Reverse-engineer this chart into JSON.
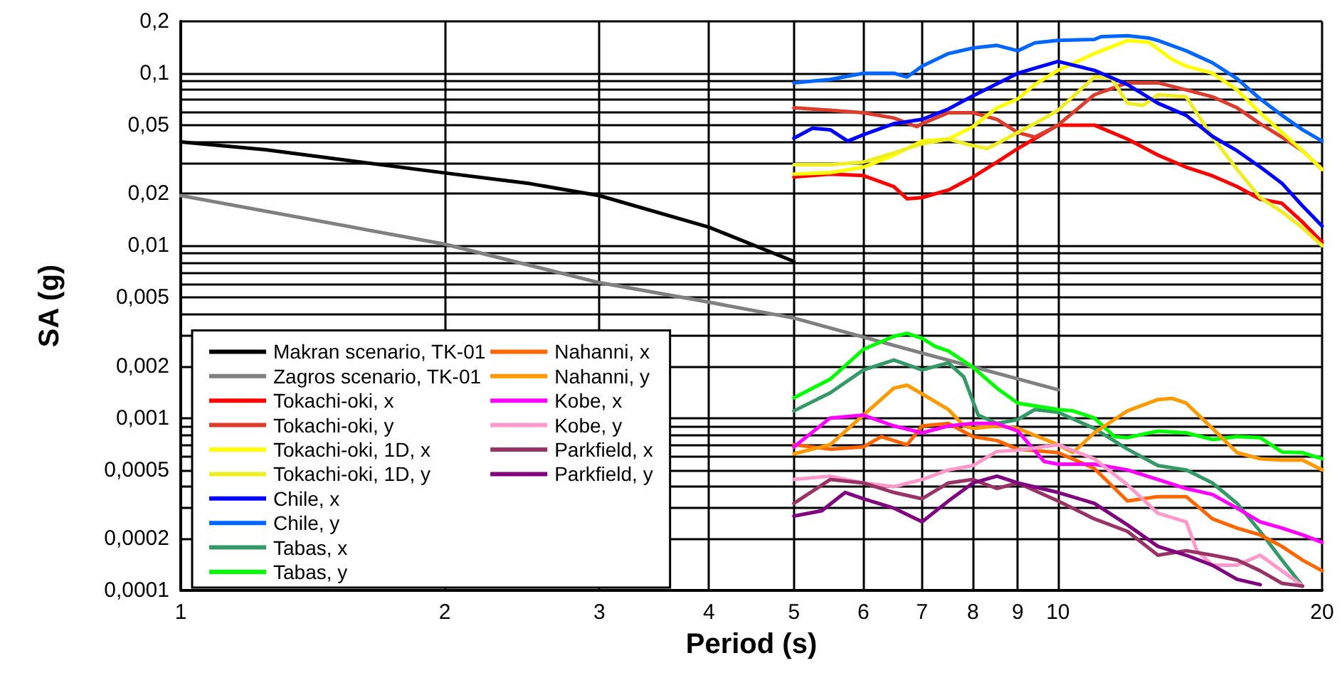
{
  "chart_data": {
    "type": "line",
    "xlabel": "Period (s)",
    "ylabel": "SA (g)",
    "log": "xy",
    "grid": true,
    "legend": "bottom left",
    "marker": "none",
    "line_style": "solid",
    "xlim": [
      1,
      20
    ],
    "xticks": [
      1,
      2,
      3,
      4,
      5,
      6,
      7,
      8,
      9,
      10,
      20
    ],
    "ylim": [
      0.0001,
      0.2
    ],
    "yticks": [
      {
        "value": 0.0001,
        "label": "0,0001"
      },
      {
        "value": 0.0002,
        "label": "0,0002"
      },
      {
        "value": 0.0003,
        "label": null
      },
      {
        "value": 0.0004,
        "label": null
      },
      {
        "value": 0.0005,
        "label": "0,0005"
      },
      {
        "value": 0.0006,
        "label": null
      },
      {
        "value": 0.0007,
        "label": null
      },
      {
        "value": 0.0008,
        "label": null
      },
      {
        "value": 0.0009,
        "label": null
      },
      {
        "value": 0.001,
        "label": "0,001"
      },
      {
        "value": 0.002,
        "label": "0,002"
      },
      {
        "value": 0.003,
        "label": null
      },
      {
        "value": 0.004,
        "label": null
      },
      {
        "value": 0.005,
        "label": "0,005"
      },
      {
        "value": 0.006,
        "label": null
      },
      {
        "value": 0.007,
        "label": null
      },
      {
        "value": 0.008,
        "label": null
      },
      {
        "value": 0.009,
        "label": null
      },
      {
        "value": 0.01,
        "label": "0,01"
      },
      {
        "value": 0.02,
        "label": "0,02"
      },
      {
        "value": 0.03,
        "label": null
      },
      {
        "value": 0.04,
        "label": null
      },
      {
        "value": 0.05,
        "label": "0,05"
      },
      {
        "value": 0.06,
        "label": null
      },
      {
        "value": 0.07,
        "label": null
      },
      {
        "value": 0.08,
        "label": null
      },
      {
        "value": 0.09,
        "label": null
      },
      {
        "value": 0.1,
        "label": "0,1"
      },
      {
        "value": 0.2,
        "label": "0,2"
      }
    ],
    "series": [
      {
        "name": "Makran scenario, TK-01",
        "color": "#000000",
        "x": [
          1,
          1.25,
          2,
          2.5,
          3,
          4,
          5
        ],
        "values": [
          0.04,
          0.036,
          0.0264,
          0.0229,
          0.0195,
          0.0128,
          0.0081
        ]
      },
      {
        "name": "Zagros scenario, TK-01",
        "color": "#808080",
        "x": [
          1,
          2,
          3,
          4,
          5,
          7,
          10
        ],
        "values": [
          0.0195,
          0.0102,
          0.0061,
          0.0047,
          0.0038,
          0.00238,
          0.00146
        ]
      },
      {
        "name": "Tokachi-oki, x",
        "color": "#ff0000",
        "x": [
          5,
          5.5,
          6,
          6.5,
          6.73,
          7,
          7.5,
          8,
          8.52,
          9,
          10,
          11,
          12,
          13,
          14,
          15,
          16,
          17,
          18,
          19,
          20
        ],
        "values": [
          0.025,
          0.026,
          0.0255,
          0.022,
          0.0187,
          0.019,
          0.021,
          0.025,
          0.0305,
          0.0366,
          0.05,
          0.05,
          0.0415,
          0.0335,
          0.0285,
          0.0254,
          0.022,
          0.0186,
          0.0176,
          0.0137,
          0.0105
        ]
      },
      {
        "name": "Tokachi-oki, y",
        "color": "#dd3c2c",
        "x": [
          5,
          5.5,
          6,
          6.5,
          6.9,
          7,
          7.5,
          8,
          8.52,
          9,
          9.41,
          10,
          11,
          12,
          13,
          14,
          15,
          16,
          17,
          18,
          19,
          20
        ],
        "values": [
          0.063,
          0.061,
          0.059,
          0.055,
          0.049,
          0.051,
          0.059,
          0.059,
          0.054,
          0.0453,
          0.0426,
          0.05,
          0.075,
          0.088,
          0.088,
          0.08,
          0.073,
          0.063,
          0.051,
          0.0426,
          0.0355,
          0.0277
        ]
      },
      {
        "name": "Tokachi-oki, 1D, x",
        "color": "#ffff00",
        "x": [
          5,
          5.5,
          6,
          6.5,
          7,
          7.5,
          8,
          8.52,
          9,
          9.41,
          10,
          11,
          12,
          12.7,
          13.5,
          14,
          15,
          16,
          17,
          18,
          19,
          20
        ],
        "values": [
          0.026,
          0.0265,
          0.0285,
          0.0335,
          0.0404,
          0.0415,
          0.049,
          0.063,
          0.071,
          0.086,
          0.104,
          0.13,
          0.155,
          0.151,
          0.12,
          0.11,
          0.1,
          0.08,
          0.059,
          0.0453,
          0.0355,
          0.0277
        ]
      },
      {
        "name": "Tokachi-oki, 1D, y",
        "color": "#eeee22",
        "x": [
          5,
          5.5,
          6,
          6.5,
          7,
          7.5,
          8,
          8.31,
          9,
          9.41,
          10,
          11,
          11.5,
          12,
          12.5,
          13,
          14,
          15,
          16,
          17,
          18,
          19,
          20
        ],
        "values": [
          0.0295,
          0.0295,
          0.0305,
          0.0345,
          0.039,
          0.0415,
          0.038,
          0.0366,
          0.0453,
          0.051,
          0.061,
          0.095,
          0.094,
          0.067,
          0.065,
          0.075,
          0.073,
          0.0426,
          0.0277,
          0.019,
          0.0157,
          0.0127,
          0.01
        ]
      },
      {
        "name": "Chile, x",
        "color": "#0000ff",
        "x": [
          5,
          5.25,
          5.5,
          5.76,
          6,
          6.5,
          7,
          7.5,
          8,
          9,
          10,
          11,
          12,
          13,
          14,
          15,
          16,
          17,
          18,
          19,
          20
        ],
        "values": [
          0.042,
          0.048,
          0.047,
          0.0404,
          0.044,
          0.051,
          0.054,
          0.062,
          0.074,
          0.1,
          0.117,
          0.104,
          0.086,
          0.067,
          0.057,
          0.043,
          0.0355,
          0.0286,
          0.023,
          0.017,
          0.013
        ]
      },
      {
        "name": "Chile, y",
        "color": "#0066ff",
        "x": [
          5,
          5.5,
          6,
          6.5,
          6.73,
          7,
          7.5,
          8,
          8.52,
          9,
          9.41,
          10,
          11,
          11.2,
          12,
          12.7,
          13,
          14,
          15,
          16,
          17,
          18,
          19,
          20
        ],
        "values": [
          0.088,
          0.092,
          0.1,
          0.1,
          0.095,
          0.11,
          0.13,
          0.14,
          0.145,
          0.135,
          0.15,
          0.155,
          0.157,
          0.163,
          0.165,
          0.16,
          0.155,
          0.135,
          0.115,
          0.093,
          0.071,
          0.057,
          0.047,
          0.0404
        ]
      },
      {
        "name": "Tabas, x",
        "color": "#339966",
        "x": [
          5,
          5.5,
          6,
          6.5,
          7,
          7.5,
          7.81,
          8.11,
          8.52,
          9,
          9.41,
          10,
          11,
          12,
          13,
          14,
          15,
          16,
          17,
          18,
          19
        ],
        "values": [
          0.0011,
          0.0014,
          0.0019,
          0.00217,
          0.0019,
          0.00209,
          0.00173,
          0.00104,
          0.00093,
          0.00098,
          0.00112,
          0.00108,
          0.00087,
          0.00066,
          0.00053,
          0.0005,
          0.00042,
          0.00032,
          0.00022,
          0.00015,
          0.000106
        ]
      },
      {
        "name": "Tabas, y",
        "color": "#00ff00",
        "x": [
          5,
          5.5,
          6,
          6.5,
          6.73,
          7,
          7.25,
          7.5,
          8,
          8.52,
          9,
          10,
          10.4,
          11,
          11.6,
          12,
          13,
          14,
          15,
          16,
          17,
          18,
          19,
          20
        ],
        "values": [
          0.00131,
          0.00168,
          0.0025,
          0.00298,
          0.0031,
          0.0029,
          0.0026,
          0.00245,
          0.00197,
          0.00149,
          0.00122,
          0.00112,
          0.0011,
          0.001,
          0.00078,
          0.00077,
          0.00084,
          0.00082,
          0.00075,
          0.00078,
          0.00077,
          0.000635,
          0.00063,
          0.00058
        ]
      },
      {
        "name": "Nahanni, x",
        "color": "#ff6600",
        "x": [
          5,
          5.5,
          6,
          6.29,
          6.73,
          7,
          7.5,
          8,
          8.52,
          9,
          10,
          11,
          12,
          13,
          14,
          15,
          16,
          17,
          18,
          19,
          20
        ],
        "values": [
          0.0007,
          0.00066,
          0.00068,
          0.00078,
          0.0007,
          0.0009,
          0.00093,
          0.00078,
          0.00074,
          0.00066,
          0.00063,
          0.00051,
          0.00033,
          0.00035,
          0.00035,
          0.00026,
          0.00023,
          0.00021,
          0.00018,
          0.00015,
          0.00013
        ]
      },
      {
        "name": "Nahanni, y",
        "color": "#ff9900",
        "x": [
          5,
          5.5,
          6,
          6.5,
          6.73,
          7,
          7.5,
          7.81,
          8,
          8.52,
          9,
          10,
          10.4,
          11,
          12,
          13,
          13.5,
          14,
          15,
          16,
          17,
          18,
          19,
          20
        ],
        "values": [
          0.00062,
          0.0007,
          0.00104,
          0.00149,
          0.00155,
          0.00138,
          0.00112,
          0.0009,
          0.00087,
          0.0009,
          0.00087,
          0.0007,
          0.00063,
          0.00082,
          0.0011,
          0.00128,
          0.0013,
          0.00122,
          0.00087,
          0.00063,
          0.00058,
          0.00057,
          0.00057,
          0.0005
        ]
      },
      {
        "name": "Kobe, x",
        "color": "#ff00ff",
        "x": [
          5,
          5.5,
          6,
          6.5,
          7,
          7.5,
          8,
          8.52,
          9,
          9.64,
          10,
          11,
          12,
          13,
          14,
          15,
          16,
          17,
          18,
          19,
          20
        ],
        "values": [
          0.00068,
          0.001,
          0.00104,
          0.0009,
          0.00082,
          0.0009,
          0.00093,
          0.00093,
          0.00084,
          0.00056,
          0.00054,
          0.00054,
          0.0005,
          0.00044,
          0.00039,
          0.00036,
          0.0003,
          0.00025,
          0.00023,
          0.00021,
          0.00019
        ]
      },
      {
        "name": "Kobe, y",
        "color": "#ff99cc",
        "x": [
          5,
          5.5,
          6,
          6.5,
          7,
          7.5,
          8,
          8.52,
          9,
          10,
          11,
          12,
          13,
          14,
          14.4,
          15,
          16,
          17,
          18,
          19
        ],
        "values": [
          0.00044,
          0.00046,
          0.00042,
          0.0004,
          0.00044,
          0.0005,
          0.00053,
          0.00064,
          0.00065,
          0.0007,
          0.00058,
          0.00041,
          0.00028,
          0.00025,
          0.00017,
          0.00014,
          0.00014,
          0.00016,
          0.00013,
          0.000106
        ]
      },
      {
        "name": "Parkfield, x",
        "color": "#993366",
        "x": [
          5,
          5.5,
          6,
          6.5,
          7,
          7.5,
          8,
          8.52,
          9,
          10,
          11,
          12,
          13,
          14,
          15,
          16,
          17,
          18,
          19
        ],
        "values": [
          0.00032,
          0.00044,
          0.00042,
          0.00037,
          0.00034,
          0.00042,
          0.00044,
          0.00039,
          0.00042,
          0.00033,
          0.00026,
          0.00022,
          0.00016,
          0.00017,
          0.00016,
          0.00015,
          0.00013,
          0.00011,
          0.000106
        ]
      },
      {
        "name": "Parkfield, y",
        "color": "#800080",
        "x": [
          5,
          5.38,
          5.72,
          6,
          6.5,
          7,
          7.5,
          8,
          8.52,
          9,
          10,
          11,
          12,
          13,
          14,
          15,
          16,
          17
        ],
        "values": [
          0.00027,
          0.00029,
          0.00037,
          0.00034,
          0.0003,
          0.00025,
          0.00033,
          0.00042,
          0.00046,
          0.00042,
          0.00037,
          0.00032,
          0.00024,
          0.00018,
          0.00016,
          0.00014,
          0.000116,
          0.000108
        ]
      }
    ]
  }
}
